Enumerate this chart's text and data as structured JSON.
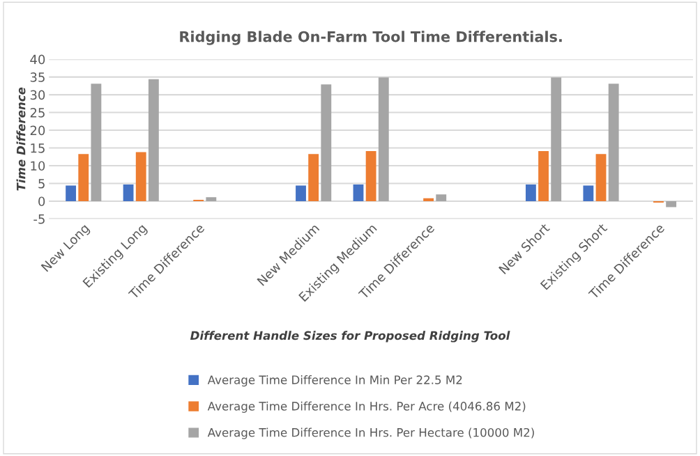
{
  "chart_data": {
    "type": "bar",
    "title": "Ridging Blade On-Farm Tool Time Differentials.",
    "xlabel": "Different Handle Sizes for Proposed Ridging Tool",
    "ylabel": "Time Difference",
    "categories": [
      "New Long",
      "Existing Long",
      "Time Difference",
      null,
      "New Medium",
      "Existing Medium",
      "Time Difference",
      null,
      "New Short",
      "Existing Short",
      "Time Difference"
    ],
    "series": [
      {
        "name": "Average Time Difference In Min Per 22.5 M2",
        "color": "#4472c4",
        "values": [
          4.4,
          4.7,
          0,
          null,
          4.4,
          4.7,
          0,
          null,
          4.7,
          4.4,
          0
        ]
      },
      {
        "name": "Average Time Difference In Hrs. Per Acre (4046.86 M2)",
        "color": "#ed7d31",
        "values": [
          13.3,
          13.8,
          0.4,
          null,
          13.3,
          14.1,
          0.8,
          null,
          14.1,
          13.3,
          -0.4
        ]
      },
      {
        "name": "Average Time Difference In Hrs. Per Hectare (10000 M2)",
        "color": "#a5a5a5",
        "values": [
          33.1,
          34.4,
          1.1,
          null,
          32.9,
          34.9,
          1.9,
          null,
          34.9,
          33.1,
          -1.7
        ]
      }
    ],
    "ylim": [
      -5,
      40
    ],
    "yticks": [
      -5,
      0,
      5,
      10,
      15,
      20,
      25,
      30,
      35,
      40
    ],
    "grid": "y",
    "legend": "bottom"
  }
}
